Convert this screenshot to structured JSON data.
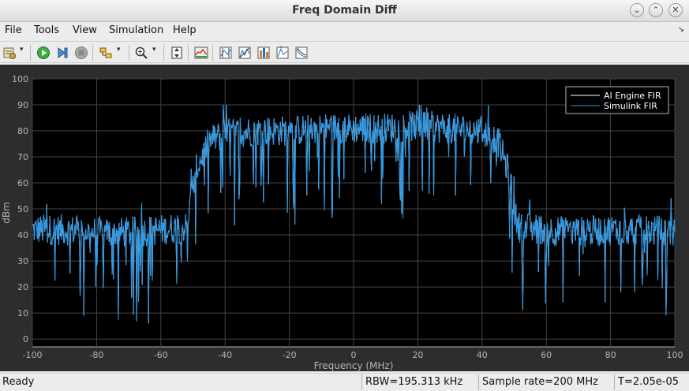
{
  "window": {
    "title": "Freq Domain Diff"
  },
  "menu": [
    "File",
    "Tools",
    "View",
    "Simulation",
    "Help"
  ],
  "toolbar_icons": [
    "configuration-icon",
    "run-icon",
    "step-forward-icon",
    "stop-icon",
    "highlight-block-icon",
    "zoom-in-icon",
    "autoscale-icon",
    "spectrum-settings-icon",
    "cursor-measurements-icon",
    "channel-measurements-icon",
    "distortion-measurements-icon",
    "peak-finder-icon",
    "ccdf-measurements-icon"
  ],
  "status": {
    "ready": "Ready",
    "rbw": "RBW=195.313 kHz",
    "sample_rate": "Sample rate=200 MHz",
    "time": "T=2.05e-05"
  },
  "colors": {
    "background": "#000000",
    "figure_background": "#2d2d2d",
    "axes_color": "#b5b5b5",
    "grid": "#444444",
    "series1": "#ffffff",
    "series2": "#2a97e6"
  },
  "chart_data": {
    "type": "line",
    "xlabel": "Frequency (MHz)",
    "ylabel": "dBm",
    "xlim": [
      -100,
      100
    ],
    "ylim": [
      -3,
      100
    ],
    "xticks": [
      -100,
      -80,
      -60,
      -40,
      -20,
      0,
      20,
      40,
      60,
      80,
      100
    ],
    "yticks": [
      0,
      10,
      20,
      30,
      40,
      50,
      60,
      70,
      80,
      90,
      100
    ],
    "grid": true,
    "legend_position": "top-right",
    "series": [
      {
        "name": "AI Engine FIR",
        "color": "#ffffff",
        "envelope": [
          [
            -100,
            42
          ],
          [
            -90,
            42
          ],
          [
            -80,
            41
          ],
          [
            -70,
            41
          ],
          [
            -60,
            42
          ],
          [
            -52,
            43
          ],
          [
            -49,
            65
          ],
          [
            -45,
            76
          ],
          [
            -40,
            79
          ],
          [
            -30,
            80
          ],
          [
            -20,
            80
          ],
          [
            -10,
            81
          ],
          [
            0,
            81
          ],
          [
            10,
            81
          ],
          [
            20,
            82
          ],
          [
            30,
            81
          ],
          [
            40,
            80
          ],
          [
            45,
            76
          ],
          [
            48,
            65
          ],
          [
            51,
            43
          ],
          [
            60,
            42
          ],
          [
            70,
            41
          ],
          [
            80,
            42
          ],
          [
            90,
            42
          ],
          [
            100,
            41
          ]
        ]
      },
      {
        "name": "Simulink FIR",
        "color": "#2a97e6",
        "envelope": [
          [
            -100,
            42
          ],
          [
            -90,
            42
          ],
          [
            -80,
            41
          ],
          [
            -70,
            41
          ],
          [
            -60,
            42
          ],
          [
            -52,
            43
          ],
          [
            -49,
            65
          ],
          [
            -45,
            76
          ],
          [
            -40,
            79
          ],
          [
            -30,
            80
          ],
          [
            -20,
            80
          ],
          [
            -10,
            81
          ],
          [
            0,
            81
          ],
          [
            10,
            81
          ],
          [
            20,
            82
          ],
          [
            30,
            81
          ],
          [
            40,
            80
          ],
          [
            45,
            76
          ],
          [
            48,
            65
          ],
          [
            51,
            43
          ],
          [
            60,
            42
          ],
          [
            70,
            41
          ],
          [
            80,
            42
          ],
          [
            90,
            42
          ],
          [
            100,
            41
          ]
        ]
      }
    ]
  }
}
